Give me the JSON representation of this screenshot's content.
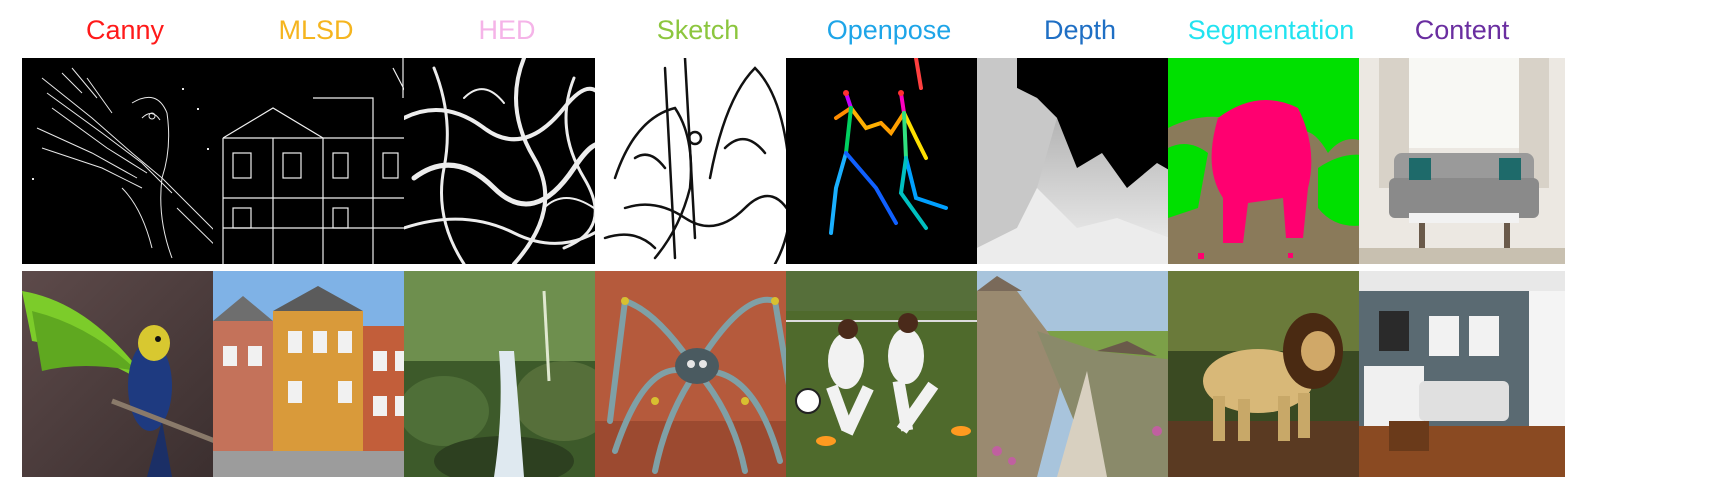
{
  "columns": [
    {
      "label": "Canny",
      "color": "#ff1a1a"
    },
    {
      "label": "MLSD",
      "color": "#f5b51f"
    },
    {
      "label": "HED",
      "color": "#f5b4e8"
    },
    {
      "label": "Sketch",
      "color": "#8cc63e"
    },
    {
      "label": "Openpose",
      "color": "#1ea5e8"
    },
    {
      "label": "Depth",
      "color": "#1f6fc4"
    },
    {
      "label": "Segmentation",
      "color": "#22e3f0"
    },
    {
      "label": "Content",
      "color": "#6a2ea0"
    }
  ]
}
